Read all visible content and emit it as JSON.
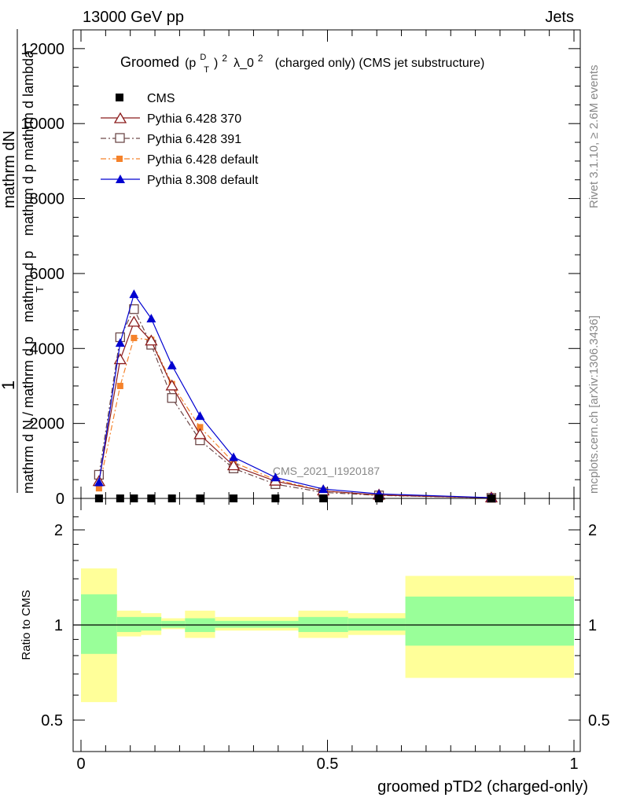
{
  "header": {
    "left": "13000 GeV pp",
    "right": "Jets"
  },
  "side_text": {
    "rivet": "Rivet 3.1.10, ≥ 2.6M events",
    "mcplots": "mcplots.cern.ch [arXiv:1306.3436]"
  },
  "watermark": "CMS_2021_I1920187",
  "colors": {
    "cms": "#000000",
    "p370": "#8b1a1a",
    "p391": "#6e4a4a",
    "p6def": "#f5822a",
    "p8def": "#0000d0",
    "band_outer": "#ffff99",
    "band_inner": "#99ff99"
  },
  "chart_data": [
    {
      "type": "line",
      "title": {
        "prefix": "Groomed",
        "pT_base": "(p",
        "pT_sup": "D",
        "pT_sub": "T",
        "pT_close": ")",
        "pow": "2",
        "lam": "λ_0",
        "lam_pow": "2",
        "suffix": "(charged only) (CMS jet substructure)"
      },
      "ylabel": {
        "line1": "1",
        "line2a": "mathrm d N / mathrm d p",
        "line2b": "mathrm d p",
        "line3": "mathrm dN",
        "line4": "mathrm d p mathrm d lambda",
        "sub": "T"
      },
      "yticks": [
        "0",
        "2000",
        "4000",
        "6000",
        "8000",
        "10000",
        "12000"
      ],
      "ylim": [
        0,
        12500
      ],
      "xlim": [
        0,
        1
      ],
      "x": [
        0.0365,
        0.0795,
        0.1075,
        0.1425,
        0.1845,
        0.2415,
        0.3095,
        0.3945,
        0.4915,
        0.6045,
        0.8325
      ],
      "series": [
        {
          "name": "CMS",
          "marker": "square-filled",
          "values": [
            0,
            0,
            0,
            0,
            0,
            0,
            0,
            0,
            0,
            0,
            0
          ]
        },
        {
          "name": "Pythia 6.428 370",
          "marker": "triangle-open",
          "values": [
            450,
            3700,
            4700,
            4200,
            3000,
            1700,
            870,
            460,
            200,
            90,
            15
          ]
        },
        {
          "name": "Pythia 6.428 391",
          "marker": "square-open",
          "values": [
            630,
            4300,
            5050,
            4100,
            2680,
            1550,
            800,
            380,
            160,
            80,
            15
          ]
        },
        {
          "name": "Pythia 6.428 default",
          "marker": "square-filled",
          "values": [
            270,
            3000,
            4280,
            4230,
            3050,
            1900,
            960,
            500,
            200,
            85,
            15
          ]
        },
        {
          "name": "Pythia 8.308 default",
          "marker": "triangle-filled",
          "values": [
            430,
            4150,
            5450,
            4800,
            3550,
            2200,
            1100,
            560,
            250,
            120,
            20
          ]
        }
      ]
    },
    {
      "type": "area",
      "ylabel": "Ratio to CMS",
      "xlabel": "groomed pTD2 (charged-only)",
      "xticks": [
        "0",
        "0.5",
        "1"
      ],
      "yticks": [
        "0.5",
        "1",
        "2"
      ],
      "ylim": [
        0.4,
        2.4
      ],
      "bins": [
        {
          "x0": 0.0,
          "x1": 0.073,
          "outer": [
            0.57,
            1.51
          ],
          "inner": [
            0.81,
            1.25
          ]
        },
        {
          "x0": 0.073,
          "x1": 0.122,
          "outer": [
            0.92,
            1.11
          ],
          "inner": [
            0.95,
            1.06
          ]
        },
        {
          "x0": 0.122,
          "x1": 0.163,
          "outer": [
            0.93,
            1.09
          ],
          "inner": [
            0.96,
            1.06
          ]
        },
        {
          "x0": 0.163,
          "x1": 0.211,
          "outer": [
            0.97,
            1.05
          ],
          "inner": [
            0.98,
            1.03
          ]
        },
        {
          "x0": 0.211,
          "x1": 0.272,
          "outer": [
            0.91,
            1.11
          ],
          "inner": [
            0.95,
            1.05
          ]
        },
        {
          "x0": 0.272,
          "x1": 0.441,
          "outer": [
            0.96,
            1.06
          ],
          "inner": [
            0.98,
            1.03
          ]
        },
        {
          "x0": 0.441,
          "x1": 0.542,
          "outer": [
            0.91,
            1.11
          ],
          "inner": [
            0.95,
            1.06
          ]
        },
        {
          "x0": 0.542,
          "x1": 0.658,
          "outer": [
            0.93,
            1.09
          ],
          "inner": [
            0.96,
            1.05
          ]
        },
        {
          "x0": 0.658,
          "x1": 1.0,
          "outer": [
            0.68,
            1.43
          ],
          "inner": [
            0.86,
            1.23
          ]
        }
      ]
    }
  ]
}
